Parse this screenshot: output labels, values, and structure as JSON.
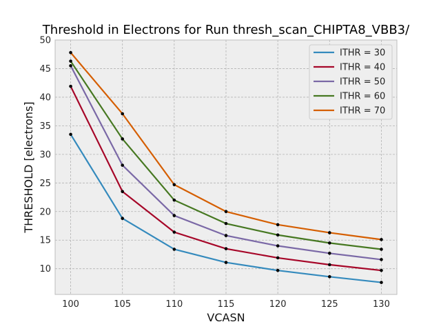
{
  "chart_data": {
    "type": "line",
    "title": "Threshold in Electrons for Run thresh_scan_CHIPTA8_VBB3/",
    "xlabel": "VCASN",
    "ylabel": "THRESHOLD [electrons]",
    "x": [
      100,
      105,
      110,
      115,
      120,
      125,
      130
    ],
    "xlim": [
      98.5,
      131.5
    ],
    "ylim": [
      5.5,
      50
    ],
    "xticks": [
      100,
      105,
      110,
      115,
      120,
      125,
      130
    ],
    "yticks": [
      10,
      15,
      20,
      25,
      30,
      35,
      40,
      45,
      50
    ],
    "grid": true,
    "legend_position": "top-right",
    "series": [
      {
        "name": "ITHR = 30",
        "color": "#348ABD",
        "values": [
          33.5,
          18.8,
          13.4,
          11.1,
          9.7,
          8.6,
          7.6
        ]
      },
      {
        "name": "ITHR = 40",
        "color": "#A60628",
        "values": [
          41.9,
          23.5,
          16.4,
          13.5,
          11.9,
          10.7,
          9.7
        ]
      },
      {
        "name": "ITHR = 50",
        "color": "#7A68A6",
        "values": [
          45.5,
          28.1,
          19.3,
          15.8,
          14.0,
          12.7,
          11.6
        ]
      },
      {
        "name": "ITHR = 60",
        "color": "#467821",
        "values": [
          46.3,
          32.7,
          22.0,
          17.9,
          15.9,
          14.5,
          13.4
        ]
      },
      {
        "name": "ITHR = 70",
        "color": "#D55E00",
        "values": [
          47.8,
          37.1,
          24.7,
          20.0,
          17.7,
          16.3,
          15.1
        ]
      }
    ]
  }
}
